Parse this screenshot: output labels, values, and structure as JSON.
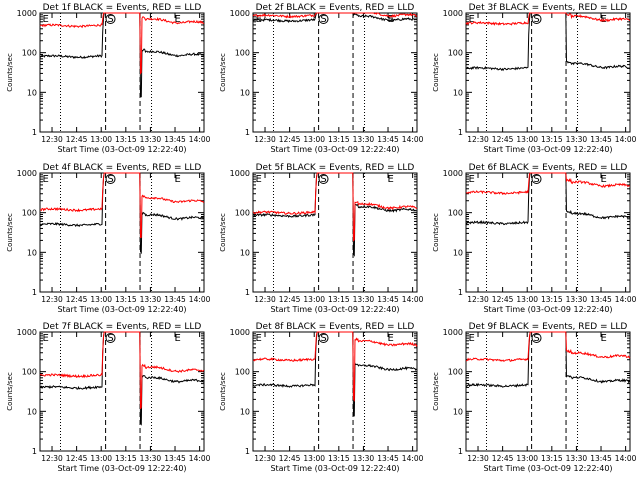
{
  "colors": {
    "events": "#000000",
    "lld": "#ff0000",
    "axis": "#000000"
  },
  "common": {
    "ylabel": "Counts/sec",
    "xlabel": "Start Time (03-Oct-09 12:22:40)",
    "x_ticks": [
      "12:30",
      "12:45",
      "13:00",
      "13:15",
      "13:30",
      "13:45",
      "14:00"
    ],
    "y_ticks": [
      "1",
      "10",
      "100",
      "1000"
    ],
    "markers": [
      "E",
      "S",
      "E"
    ]
  },
  "chart_data": [
    {
      "type": "line",
      "title": "Det 1f BLACK = Events, RED = LLD",
      "x_unit": "minutes after 12:22:40",
      "xlim": [
        "12:22:40",
        "14:02:40"
      ],
      "ylim": [
        1,
        1000
      ],
      "yscale": "log",
      "series": [
        {
          "name": "Events",
          "color": "#000000",
          "pre": 80,
          "post": 90,
          "dip": 8
        },
        {
          "name": "LLD",
          "color": "#ff0000",
          "pre": 480,
          "post": 600,
          "dip": 30
        }
      ]
    },
    {
      "type": "line",
      "title": "Det 2f BLACK = Events, RED = LLD",
      "x_unit": "minutes after 12:22:40",
      "xlim": [
        "12:22:40",
        "14:02:40"
      ],
      "ylim": [
        1,
        1000
      ],
      "yscale": "log",
      "series": [
        {
          "name": "Events",
          "color": "#000000",
          "pre": 650,
          "post": 700,
          "dip": 0
        },
        {
          "name": "LLD",
          "color": "#ff0000",
          "pre": 850,
          "post": 900,
          "dip": 0
        }
      ]
    },
    {
      "type": "line",
      "title": "Det 3f BLACK = Events, RED = LLD",
      "x_unit": "minutes after 12:22:40",
      "xlim": [
        "12:22:40",
        "14:02:40"
      ],
      "ylim": [
        1,
        1000
      ],
      "yscale": "log",
      "series": [
        {
          "name": "Events",
          "color": "#000000",
          "pre": 40,
          "post": 45,
          "dip": 0
        },
        {
          "name": "LLD",
          "color": "#ff0000",
          "pre": 550,
          "post": 700,
          "dip": 0
        }
      ]
    },
    {
      "type": "line",
      "title": "Det 4f BLACK = Events, RED = LLD",
      "x_unit": "minutes after 12:22:40",
      "xlim": [
        "12:22:40",
        "14:02:40"
      ],
      "ylim": [
        1,
        1000
      ],
      "yscale": "log",
      "series": [
        {
          "name": "Events",
          "color": "#000000",
          "pre": 50,
          "post": 75,
          "dip": 10
        },
        {
          "name": "LLD",
          "color": "#ff0000",
          "pre": 120,
          "post": 200,
          "dip": 25
        }
      ]
    },
    {
      "type": "line",
      "title": "Det 5f BLACK = Events, RED = LLD",
      "x_unit": "minutes after 12:22:40",
      "xlim": [
        "12:22:40",
        "14:02:40"
      ],
      "ylim": [
        1,
        1000
      ],
      "yscale": "log",
      "series": [
        {
          "name": "Events",
          "color": "#000000",
          "pre": 85,
          "post": 120,
          "dip": 9
        },
        {
          "name": "LLD",
          "color": "#ff0000",
          "pre": 100,
          "post": 140,
          "dip": 20
        }
      ]
    },
    {
      "type": "line",
      "title": "Det 6f BLACK = Events, RED = LLD",
      "x_unit": "minutes after 12:22:40",
      "xlim": [
        "12:22:40",
        "14:02:40"
      ],
      "ylim": [
        1,
        1000
      ],
      "yscale": "log",
      "series": [
        {
          "name": "Events",
          "color": "#000000",
          "pre": 55,
          "post": 80,
          "dip": 0
        },
        {
          "name": "LLD",
          "color": "#ff0000",
          "pre": 320,
          "post": 500,
          "dip": 0
        }
      ]
    },
    {
      "type": "line",
      "title": "Det 7f BLACK = Events, RED = LLD",
      "x_unit": "minutes after 12:22:40",
      "xlim": [
        "12:22:40",
        "14:02:40"
      ],
      "ylim": [
        1,
        1000
      ],
      "yscale": "log",
      "series": [
        {
          "name": "Events",
          "color": "#000000",
          "pre": 40,
          "post": 60,
          "dip": 5
        },
        {
          "name": "LLD",
          "color": "#ff0000",
          "pre": 80,
          "post": 110,
          "dip": 12
        }
      ]
    },
    {
      "type": "line",
      "title": "Det 8f BLACK = Events, RED = LLD",
      "x_unit": "minutes after 12:22:40",
      "xlim": [
        "12:22:40",
        "14:02:40"
      ],
      "ylim": [
        1,
        1000
      ],
      "yscale": "log",
      "series": [
        {
          "name": "Events",
          "color": "#000000",
          "pre": 45,
          "post": 120,
          "dip": 8
        },
        {
          "name": "LLD",
          "color": "#ff0000",
          "pre": 200,
          "post": 500,
          "dip": 20
        }
      ]
    },
    {
      "type": "line",
      "title": "Det 9f BLACK = Events, RED = LLD",
      "x_unit": "minutes after 12:22:40",
      "xlim": [
        "12:22:40",
        "14:02:40"
      ],
      "ylim": [
        1,
        1000
      ],
      "yscale": "log",
      "series": [
        {
          "name": "Events",
          "color": "#000000",
          "pre": 45,
          "post": 60,
          "dip": 0
        },
        {
          "name": "LLD",
          "color": "#ff0000",
          "pre": 200,
          "post": 250,
          "dip": 0
        }
      ]
    }
  ]
}
